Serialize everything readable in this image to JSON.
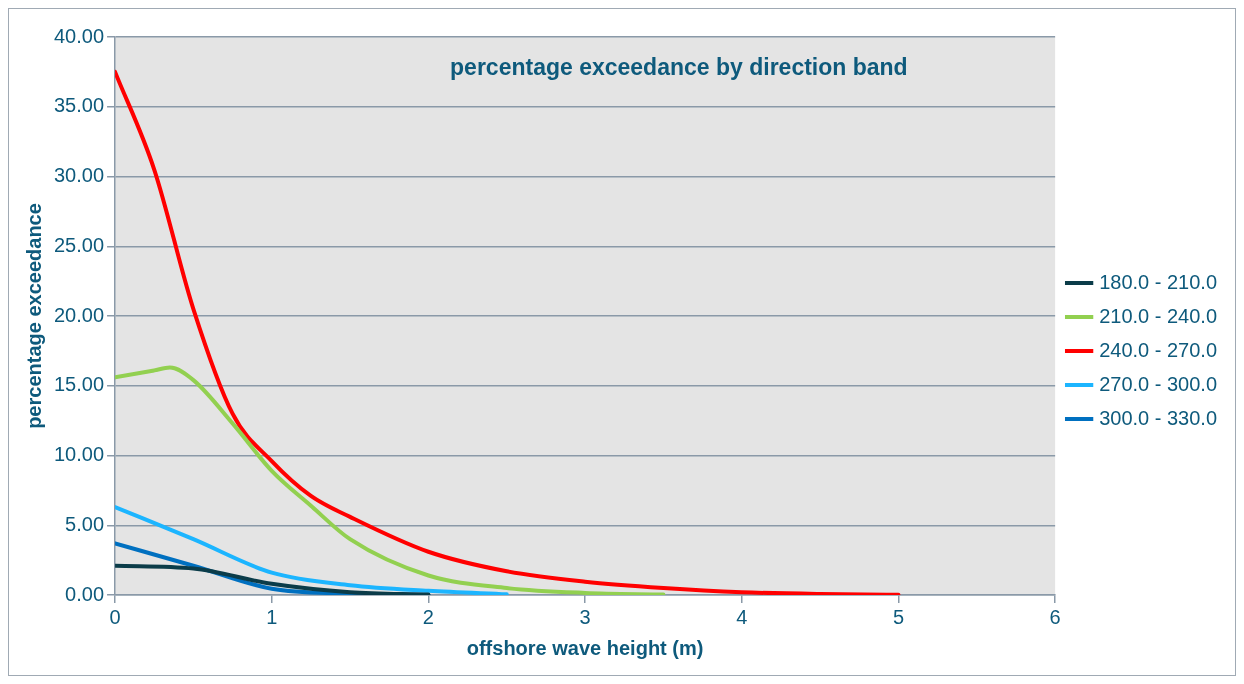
{
  "chart_data": {
    "type": "line",
    "title": "percentage exceedance by direction band",
    "xlabel": "offshore wave height (m)",
    "ylabel": "percentage exceedance",
    "xlim": [
      0,
      6
    ],
    "xticks": [
      0,
      1,
      2,
      3,
      4,
      5,
      6
    ],
    "ylim": [
      0,
      40
    ],
    "yticks": [
      {
        "value": 0,
        "label": "0.00"
      },
      {
        "value": 5,
        "label": "5.00"
      },
      {
        "value": 10,
        "label": "10.00"
      },
      {
        "value": 15,
        "label": "15.00"
      },
      {
        "value": 20,
        "label": "20.00"
      },
      {
        "value": 25,
        "label": "25.00"
      },
      {
        "value": 30,
        "label": "30.00"
      },
      {
        "value": 35,
        "label": "35.00"
      },
      {
        "value": 40,
        "label": "40.00"
      }
    ],
    "grid": "y",
    "legend": "right",
    "marker": "none",
    "line_style": "solid",
    "series": [
      {
        "name": "180.0 - 210.0",
        "color": "#0b3c49",
        "x": [
          0,
          0.5,
          1,
          1.5,
          2
        ],
        "values": [
          2.1,
          1.9,
          0.8,
          0.2,
          0.03
        ]
      },
      {
        "name": "210.0 - 240.0",
        "color": "#92d050",
        "x": [
          0,
          0.25,
          0.35,
          0.5,
          0.75,
          1,
          1.25,
          1.5,
          2,
          2.5,
          3,
          3.5
        ],
        "values": [
          15.6,
          16.1,
          16.3,
          15.4,
          12.3,
          8.9,
          6.4,
          4.0,
          1.4,
          0.5,
          0.15,
          0.03
        ]
      },
      {
        "name": "240.0 - 270.0",
        "color": "#ff0000",
        "x": [
          0,
          0.25,
          0.5,
          0.75,
          1,
          1.25,
          1.5,
          2,
          2.5,
          3,
          3.5,
          4,
          4.5,
          5
        ],
        "values": [
          37.5,
          30.5,
          20.5,
          13.0,
          9.6,
          7.1,
          5.6,
          3.1,
          1.7,
          0.95,
          0.5,
          0.2,
          0.07,
          0.02
        ]
      },
      {
        "name": "270.0 - 300.0",
        "color": "#1cb5ff",
        "x": [
          0,
          0.5,
          1,
          1.5,
          2,
          2.5
        ],
        "values": [
          6.3,
          4.0,
          1.6,
          0.7,
          0.3,
          0.05
        ]
      },
      {
        "name": "300.0 - 330.0",
        "color": "#0070c0",
        "x": [
          0,
          0.5,
          1,
          1.5,
          2
        ],
        "values": [
          3.7,
          2.1,
          0.45,
          0.1,
          0.02
        ]
      }
    ]
  }
}
